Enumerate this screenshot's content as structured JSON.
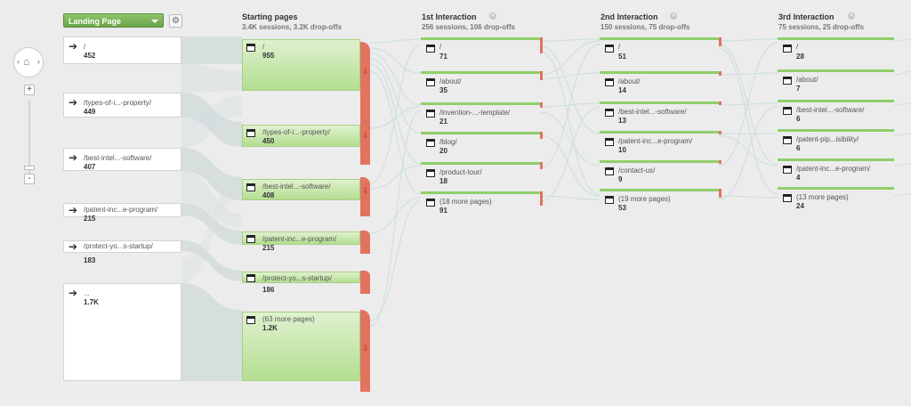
{
  "controls": {
    "dimension_select": "Landing Page",
    "gear_icon": "gear-icon",
    "zoom_in": "+",
    "zoom_out": "-"
  },
  "columns": [
    {
      "title": "Starting pages",
      "stats": "3.4K sessions, 3.2K drop-offs"
    },
    {
      "title": "1st Interaction",
      "stats": "256 sessions, 106 drop-offs"
    },
    {
      "title": "2nd Interaction",
      "stats": "150 sessions, 75 drop-offs"
    },
    {
      "title": "3rd Interaction",
      "stats": "75 sessions, 25 drop-offs"
    }
  ],
  "sources": [
    {
      "label": "/",
      "count": "452"
    },
    {
      "label": "/types-of-i...-property/",
      "count": "449"
    },
    {
      "label": "/best-intel...-software/",
      "count": "407"
    },
    {
      "label": "/patent-inc...e-program/",
      "count": "215"
    },
    {
      "label": "/protect-yo...s-startup/",
      "count": "183"
    },
    {
      "label": "...",
      "count": "1.7K"
    }
  ],
  "starting_pages": [
    {
      "label": "/",
      "count": "955"
    },
    {
      "label": "/types-of-i...-property/",
      "count": "450"
    },
    {
      "label": "/best-intel...-software/",
      "count": "408"
    },
    {
      "label": "/patent-inc...e-program/",
      "count": "215"
    },
    {
      "label": "/protect-yo...s-startup/",
      "count": "186"
    },
    {
      "label": "(63 more pages)",
      "count": "1.2K"
    }
  ],
  "interaction_1": [
    {
      "label": "/",
      "count": "71"
    },
    {
      "label": "/about/",
      "count": "35"
    },
    {
      "label": "/invention-...-template/",
      "count": "21"
    },
    {
      "label": "/blog/",
      "count": "20"
    },
    {
      "label": "/product-tour/",
      "count": "18"
    },
    {
      "label": "(18 more pages)",
      "count": "91"
    }
  ],
  "interaction_2": [
    {
      "label": "/",
      "count": "51"
    },
    {
      "label": "/about/",
      "count": "14"
    },
    {
      "label": "/best-intel...-software/",
      "count": "13"
    },
    {
      "label": "/patent-inc...e-program/",
      "count": "10"
    },
    {
      "label": "/contact-us/",
      "count": "9"
    },
    {
      "label": "(19 more pages)",
      "count": "53"
    }
  ],
  "interaction_3": [
    {
      "label": "/",
      "count": "28"
    },
    {
      "label": "/about/",
      "count": "7"
    },
    {
      "label": "/best-intel...-software/",
      "count": "6"
    },
    {
      "label": "/patent-pip...isibility/",
      "count": "6"
    },
    {
      "label": "/patent-inc...e-program/",
      "count": "4"
    },
    {
      "label": "(13 more pages)",
      "count": "24"
    }
  ]
}
